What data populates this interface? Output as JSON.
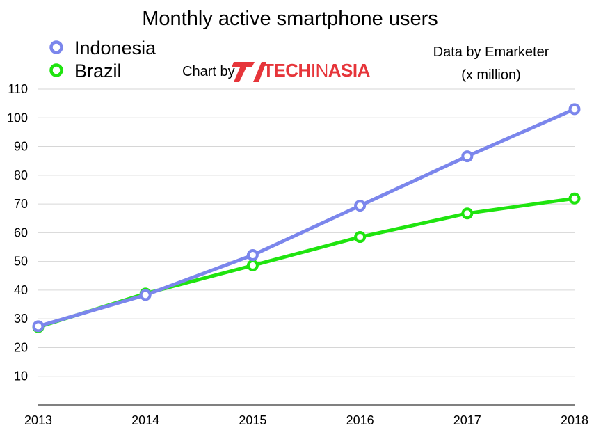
{
  "chart_data": {
    "type": "line",
    "title": "Monthly active smartphone users",
    "x": [
      "2013",
      "2014",
      "2015",
      "2016",
      "2017",
      "2018"
    ],
    "yticks": [
      "10",
      "20",
      "30",
      "40",
      "50",
      "60",
      "70",
      "80",
      "90",
      "100",
      "110"
    ],
    "ylim": [
      0,
      110
    ],
    "grid": true,
    "legend_position": "top-left",
    "series": [
      {
        "name": "Indonesia",
        "color": "#7b86ec",
        "values": [
          27.4,
          38.3,
          52.2,
          69.4,
          86.6,
          103.0
        ]
      },
      {
        "name": "Brazil",
        "color": "#1fe40f",
        "values": [
          27.1,
          38.8,
          48.6,
          58.5,
          66.7,
          71.9
        ]
      }
    ]
  },
  "credit": {
    "source_line1": "Data by Emarketer",
    "source_line2": "(x million)",
    "chart_by": "Chart by",
    "brand_tech": "TECH",
    "brand_in": "IN",
    "brand_asia": "ASIA",
    "brand_color": "#e6353a"
  }
}
